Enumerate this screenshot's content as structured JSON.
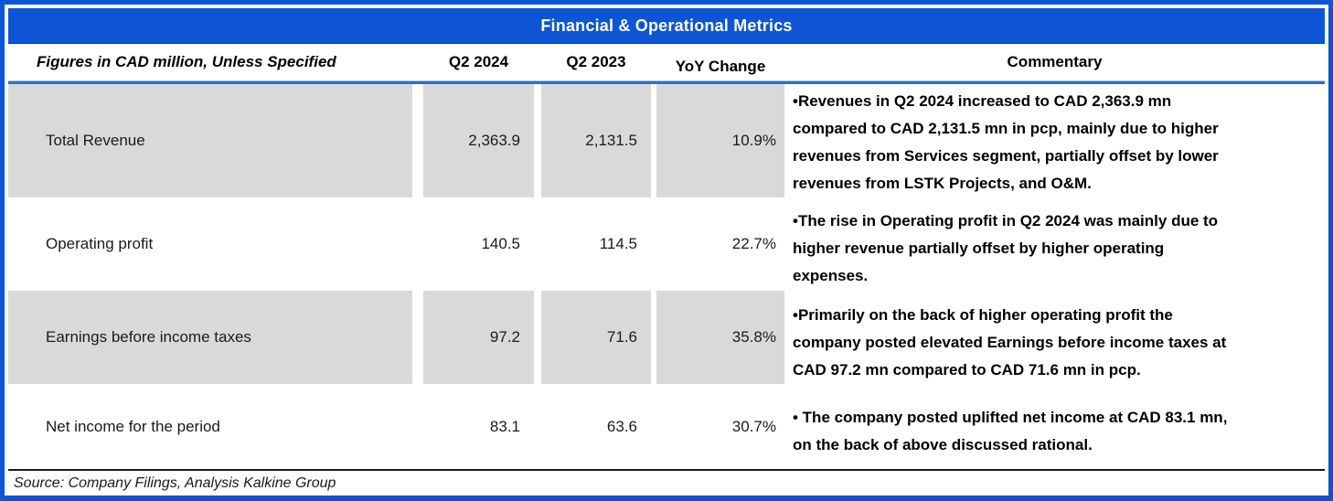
{
  "title": "Financial & Operational Metrics",
  "colors": {
    "accent_blue": "#0d55d4",
    "row_shade_gray": "#d9d9d9",
    "text_black": "#000000"
  },
  "table": {
    "header": {
      "metric": "Figures in CAD million, Unless Specified",
      "q2_2024": "Q2 2024",
      "q2_2023": "Q2 2023",
      "yoy": "YoY Change",
      "commentary": "Commentary"
    },
    "rows": [
      {
        "metric": "Total Revenue",
        "q2_2024": "2,363.9",
        "q2_2023": "2,131.5",
        "yoy": "10.9%",
        "commentary": "•Revenues in Q2 2024 increased to CAD 2,363.9 mn\ncompared to CAD 2,131.5 mn in pcp, mainly due to higher\nrevenues from Services segment, partially offset by lower\nrevenues from LSTK Projects, and O&M."
      },
      {
        "metric": "Operating profit",
        "q2_2024": "140.5",
        "q2_2023": "114.5",
        "yoy": "22.7%",
        "commentary": "•The rise in Operating profit in Q2 2024 was mainly due to\nhigher revenue partially offset by higher operating\nexpenses."
      },
      {
        "metric": "Earnings before income taxes",
        "q2_2024": "97.2",
        "q2_2023": "71.6",
        "yoy": "35.8%",
        "commentary": "•Primarily on the back of higher operating profit the\ncompany posted elevated Earnings before income taxes at\nCAD 97.2 mn compared to CAD 71.6 mn in pcp."
      },
      {
        "metric": "Net income for the period",
        "q2_2024": "83.1",
        "q2_2023": "63.6",
        "yoy": "30.7%",
        "commentary": "• The company posted uplifted net income at CAD 83.1 mn,\non the back of above discussed rational."
      }
    ]
  },
  "source": "Source: Company Filings, Analysis Kalkine Group",
  "chart_data": {
    "type": "table",
    "title": "Financial & Operational Metrics",
    "units_note": "Figures in CAD million, Unless Specified",
    "columns": [
      "Metric",
      "Q2 2024",
      "Q2 2023",
      "YoY Change"
    ],
    "rows": [
      {
        "metric": "Total Revenue",
        "q2_2024": 2363.9,
        "q2_2023": 2131.5,
        "yoy_change_pct": 10.9
      },
      {
        "metric": "Operating profit",
        "q2_2024": 140.5,
        "q2_2023": 114.5,
        "yoy_change_pct": 22.7
      },
      {
        "metric": "Earnings before income taxes",
        "q2_2024": 97.2,
        "q2_2023": 71.6,
        "yoy_change_pct": 35.8
      },
      {
        "metric": "Net income for the period",
        "q2_2024": 83.1,
        "q2_2023": 63.6,
        "yoy_change_pct": 30.7
      }
    ],
    "source": "Source: Company Filings, Analysis Kalkine Group"
  }
}
